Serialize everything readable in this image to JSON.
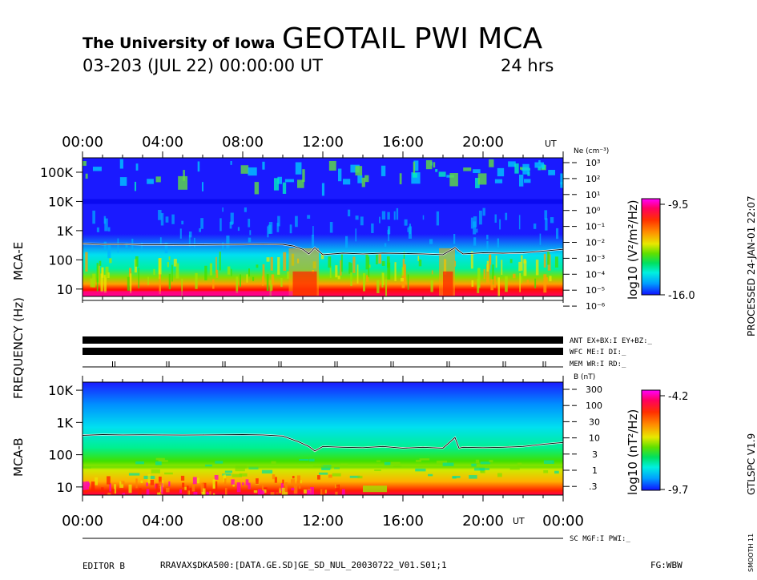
{
  "header": {
    "institution": "The University of Iowa",
    "instrument": "GEOTAIL PWI MCA",
    "date_line": "03-203 (JUL 22) 00:00:00 UT",
    "duration": "24 hrs"
  },
  "side": {
    "processed": "PROCESSED 24-JAN-01  22:07",
    "version": "GTLSPC  V1.9",
    "smooth": "SMOOTH 11"
  },
  "axes": {
    "frequency_label": "FREQUENCY (Hz)",
    "mca_e": "MCA-E",
    "mca_b": "MCA-B",
    "ut": "UT",
    "ne_label": "Ne (cm⁻³)",
    "b_label": "B (nT)"
  },
  "status": {
    "ant": "ANT EX+BX:I  EY+BZ:_",
    "wfc": "WFC ME:I       DI:_",
    "mem": "MEM WR:I       RD:_",
    "sc": "SC MGF:I    PWI:_"
  },
  "footer": {
    "editor": "EDITOR B",
    "path": "RRAVAX$DKA500:[DATA.GE.SD]GE_SD_NUL_20030722_V01.S01;1",
    "fg": "FG:WBW"
  },
  "colors": {
    "background": "#ffffff",
    "trace": "#ffffff",
    "scale": [
      "#1a1aff",
      "#00a0ff",
      "#00e8e8",
      "#00ff80",
      "#40e000",
      "#e8e800",
      "#ff8000",
      "#ff0000",
      "#ff00c0"
    ]
  },
  "chart_data": [
    {
      "type": "heatmap",
      "name": "MCA-E electric field spectrogram",
      "x_ticks": [
        "00:00",
        "04:00",
        "08:00",
        "12:00",
        "16:00",
        "20:00"
      ],
      "x_unit": "UT",
      "x_range_hours": [
        0,
        24
      ],
      "y_label": "FREQUENCY (Hz)",
      "y_ticks": [
        "10",
        "100",
        "1K",
        "10K",
        "100K"
      ],
      "y_range_hz": [
        5.6,
        311000
      ],
      "right_axis": {
        "label": "Ne (cm⁻³)",
        "ticks": [
          "10³",
          "10²",
          "10¹",
          "10⁰",
          "10⁻¹",
          "10⁻²",
          "10⁻³",
          "10⁻⁴",
          "10⁻⁵",
          "10⁻⁶"
        ]
      },
      "colorbar": {
        "label": "log10 (V²/m²/Hz)",
        "max": "-9.5",
        "min": "-16.0",
        "max_value": -9.5,
        "min_value": -16.0
      },
      "trace_overlay": "electron density line (white)",
      "trace_hz_by_hour": [
        [
          0,
          360
        ],
        [
          1,
          340
        ],
        [
          2,
          345
        ],
        [
          3,
          330
        ],
        [
          4,
          330
        ],
        [
          5,
          325
        ],
        [
          6,
          330
        ],
        [
          7,
          335
        ],
        [
          8,
          340
        ],
        [
          9,
          345
        ],
        [
          10,
          340
        ],
        [
          10.5,
          300
        ],
        [
          11,
          230
        ],
        [
          11.3,
          160
        ],
        [
          11.6,
          260
        ],
        [
          12,
          150
        ],
        [
          13,
          170
        ],
        [
          14,
          160
        ],
        [
          15,
          170
        ],
        [
          16,
          165
        ],
        [
          17,
          160
        ],
        [
          18,
          150
        ],
        [
          18.6,
          260
        ],
        [
          18.8,
          200
        ],
        [
          19,
          160
        ],
        [
          20,
          175
        ],
        [
          21,
          170
        ],
        [
          22,
          175
        ],
        [
          23,
          200
        ],
        [
          24,
          230
        ]
      ]
    },
    {
      "type": "heatmap",
      "name": "MCA-B magnetic field spectrogram",
      "x_ticks": [
        "00:00",
        "04:00",
        "08:00",
        "12:00",
        "16:00",
        "20:00",
        "00:00"
      ],
      "x_unit": "UT",
      "x_range_hours": [
        0,
        24
      ],
      "y_ticks": [
        "10",
        "100",
        "1K",
        "10K"
      ],
      "y_range_hz": [
        5.6,
        17800
      ],
      "right_axis": {
        "label": "B (nT)",
        "ticks": [
          "300",
          "100",
          "30",
          "10",
          "3",
          "1",
          ".3"
        ]
      },
      "colorbar": {
        "label": "log10 (nT²/Hz)",
        "max": "-4.2",
        "min": "-9.7",
        "max_value": -4.2,
        "min_value": -9.7
      },
      "trace_overlay": "magnetic field magnitude line (white)",
      "trace_hz_by_hour": [
        [
          0,
          400
        ],
        [
          1,
          420
        ],
        [
          2,
          410
        ],
        [
          3,
          415
        ],
        [
          4,
          410
        ],
        [
          5,
          405
        ],
        [
          6,
          410
        ],
        [
          7,
          415
        ],
        [
          8,
          420
        ],
        [
          9,
          410
        ],
        [
          10,
          380
        ],
        [
          10.8,
          250
        ],
        [
          11.3,
          180
        ],
        [
          11.6,
          130
        ],
        [
          12,
          180
        ],
        [
          13,
          170
        ],
        [
          14,
          165
        ],
        [
          15,
          180
        ],
        [
          16,
          160
        ],
        [
          17,
          170
        ],
        [
          18,
          160
        ],
        [
          18.6,
          340
        ],
        [
          18.8,
          160
        ],
        [
          19,
          170
        ],
        [
          20,
          165
        ],
        [
          21,
          170
        ],
        [
          22,
          180
        ],
        [
          23,
          210
        ],
        [
          24,
          240
        ]
      ]
    }
  ]
}
